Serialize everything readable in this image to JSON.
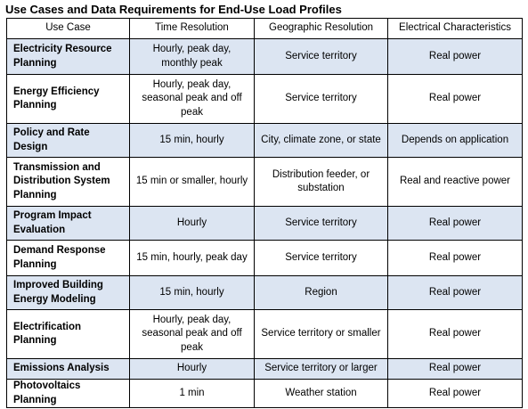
{
  "title": "Use Cases and Data Requirements for End-Use Load Profiles",
  "columns": [
    "Use Case",
    "Time Resolution",
    "Geographic Resolution",
    "Electrical Characteristics"
  ],
  "rows": [
    {
      "use_case": "Electricity Resource Planning",
      "time": "Hourly, peak day, monthly peak",
      "geo": "Service territory",
      "elec": "Real power"
    },
    {
      "use_case": "Energy Efficiency Planning",
      "time": "Hourly, peak day, seasonal peak and off peak",
      "geo": "Service territory",
      "elec": "Real power"
    },
    {
      "use_case": "Policy and Rate Design",
      "time": "15 min, hourly",
      "geo": "City, climate zone, or state",
      "elec": "Depends on application"
    },
    {
      "use_case": "Transmission and Distribution System Planning",
      "time": "15 min or smaller, hourly",
      "geo": "Distribution feeder, or substation",
      "elec": "Real and reactive power"
    },
    {
      "use_case": "Program Impact Evaluation",
      "time": "Hourly",
      "geo": "Service territory",
      "elec": "Real power"
    },
    {
      "use_case": "Demand Response Planning",
      "time": "15 min, hourly, peak day",
      "geo": "Service territory",
      "elec": "Real power"
    },
    {
      "use_case": "Improved Building Energy Modeling",
      "time": "15 min, hourly",
      "geo": "Region",
      "elec": "Real power"
    },
    {
      "use_case": "Electrification Planning",
      "time": "Hourly, peak day, seasonal peak and off peak",
      "geo": "Service territory or smaller",
      "elec": "Real power"
    },
    {
      "use_case": "Emissions Analysis",
      "time": "Hourly",
      "geo": "Service territory or larger",
      "elec": "Real power"
    },
    {
      "use_case": "Photovoltaics Planning",
      "time": "1 min",
      "geo": "Weather station",
      "elec": "Real power"
    }
  ]
}
